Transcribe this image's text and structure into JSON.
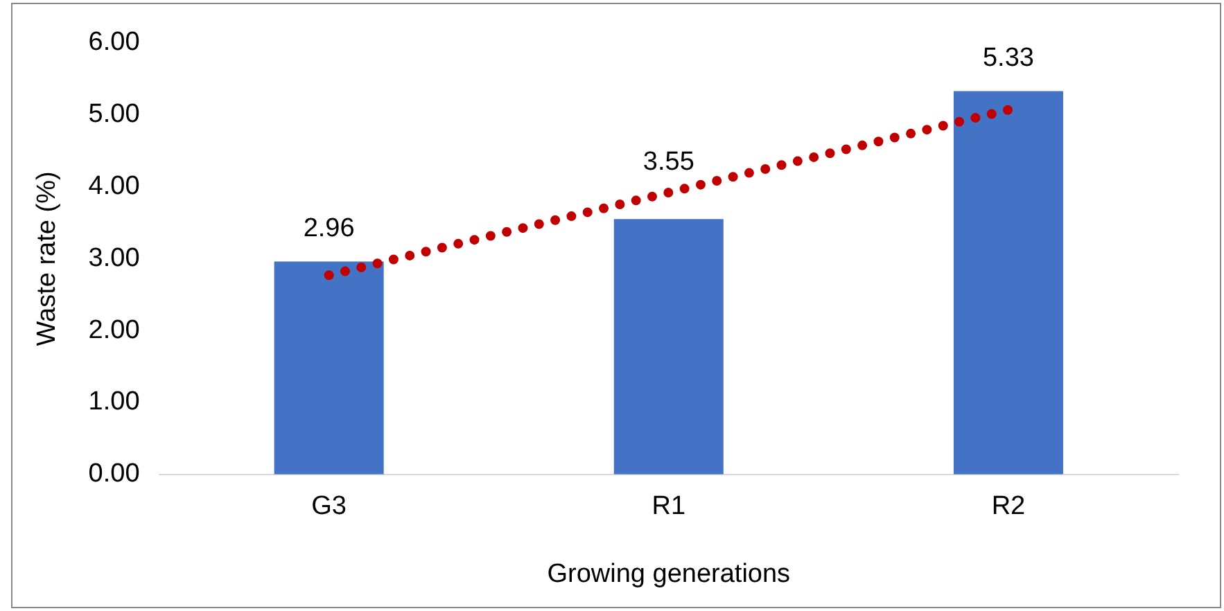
{
  "chart_data": {
    "type": "bar",
    "xlabel": "Growing generations",
    "ylabel": "Waste rate (%)",
    "categories": [
      "G3",
      "R1",
      "R2"
    ],
    "series": [
      {
        "color": "#4472c4",
        "values": [
          2.96,
          3.55,
          5.33
        ],
        "value_labels": [
          "2.96",
          "3.55",
          "5.33"
        ]
      },
      {
        "type": "line",
        "color": "#c00000",
        "x": [
          "G3",
          "R1",
          "R2"
        ],
        "values": [
          2.77,
          3.92,
          5.07
        ],
        "line_style": "dotted",
        "marker": "none"
      }
    ],
    "ylim": [
      0,
      6
    ],
    "yticks": [
      {
        "value": 0,
        "label": "0.00"
      },
      {
        "value": 1,
        "label": "1.00"
      },
      {
        "value": 2,
        "label": "2.00"
      },
      {
        "value": 3,
        "label": "3.00"
      },
      {
        "value": 4,
        "label": "4.00"
      },
      {
        "value": 5,
        "label": "5.00"
      },
      {
        "value": 6,
        "label": "6.00"
      }
    ],
    "grid": false,
    "legend": false
  }
}
